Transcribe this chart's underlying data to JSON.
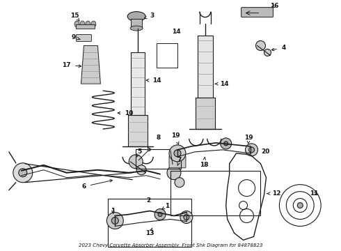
{
  "title": "2023 Chevy Corvette Absorber Assembly, Front Shk Diagram for 84878823",
  "bg": "#ffffff",
  "lc": "#1a1a1a",
  "tc": "#111111",
  "fs": 6.5,
  "fig_w": 4.9,
  "fig_h": 3.6,
  "dpi": 100
}
